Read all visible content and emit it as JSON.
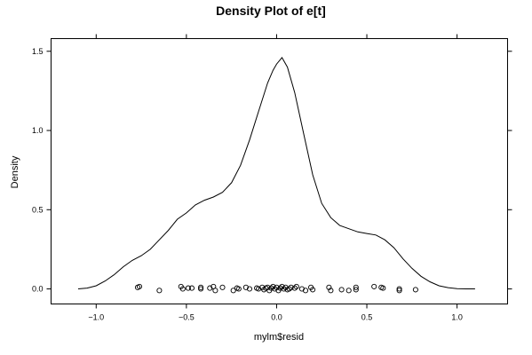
{
  "chart_data": {
    "type": "line",
    "title": "Density Plot of e[t]",
    "xlabel": "mylm$resid",
    "ylabel": "Density",
    "xlim": [
      -1.25,
      1.28
    ],
    "ylim": [
      -0.095,
      1.58
    ],
    "x_ticks": [
      -1.0,
      -0.5,
      0.0,
      0.5,
      1.0
    ],
    "x_tick_labels": [
      "−1.0",
      "−0.5",
      "0.0",
      "0.5",
      "1.0"
    ],
    "y_ticks": [
      0.0,
      0.5,
      1.0,
      1.5
    ],
    "y_tick_labels": [
      "0.0",
      "0.5",
      "1.0",
      "1.5"
    ],
    "grid": false,
    "series": [
      {
        "style": "line",
        "color": "#000000",
        "x": [
          -1.1,
          -1.05,
          -1.0,
          -0.95,
          -0.9,
          -0.85,
          -0.8,
          -0.75,
          -0.7,
          -0.65,
          -0.6,
          -0.55,
          -0.5,
          -0.45,
          -0.4,
          -0.35,
          -0.3,
          -0.25,
          -0.2,
          -0.15,
          -0.1,
          -0.05,
          -0.02,
          0.0,
          0.03,
          0.06,
          0.1,
          0.15,
          0.2,
          0.25,
          0.3,
          0.35,
          0.4,
          0.45,
          0.5,
          0.55,
          0.6,
          0.65,
          0.7,
          0.75,
          0.8,
          0.85,
          0.9,
          0.95,
          1.0,
          1.05,
          1.1
        ],
        "y": [
          0.0,
          0.005,
          0.02,
          0.05,
          0.09,
          0.14,
          0.18,
          0.21,
          0.25,
          0.31,
          0.37,
          0.44,
          0.48,
          0.53,
          0.56,
          0.58,
          0.61,
          0.67,
          0.78,
          0.94,
          1.12,
          1.3,
          1.38,
          1.42,
          1.46,
          1.4,
          1.24,
          0.98,
          0.72,
          0.54,
          0.45,
          0.4,
          0.38,
          0.36,
          0.35,
          0.34,
          0.31,
          0.26,
          0.19,
          0.13,
          0.08,
          0.045,
          0.02,
          0.008,
          0.002,
          0.0,
          0.0
        ]
      },
      {
        "style": "points",
        "color": "#000000",
        "x": [
          -0.77,
          -0.76,
          -0.65,
          -0.53,
          -0.52,
          -0.49,
          -0.47,
          -0.42,
          -0.42,
          -0.37,
          -0.35,
          -0.34,
          -0.3,
          -0.24,
          -0.22,
          -0.21,
          -0.17,
          -0.15,
          -0.11,
          -0.1,
          -0.08,
          -0.07,
          -0.06,
          -0.05,
          -0.04,
          -0.03,
          -0.02,
          -0.01,
          0.0,
          0.01,
          0.02,
          0.03,
          0.04,
          0.05,
          0.06,
          0.07,
          0.08,
          0.1,
          0.11,
          0.14,
          0.16,
          0.19,
          0.2,
          0.29,
          0.3,
          0.36,
          0.4,
          0.44,
          0.44,
          0.54,
          0.58,
          0.59,
          0.68,
          0.68,
          0.77
        ],
        "y": [
          0.01,
          0.015,
          -0.01,
          0.015,
          0.0,
          0.005,
          0.005,
          0.0,
          0.01,
          0.005,
          0.015,
          -0.01,
          0.01,
          -0.01,
          0.005,
          0.0,
          0.01,
          0.0,
          0.005,
          0.0,
          0.01,
          -0.005,
          0.005,
          0.01,
          -0.01,
          0.005,
          0.015,
          0.0,
          0.01,
          -0.01,
          0.005,
          0.015,
          0.0,
          0.01,
          -0.005,
          0.0,
          0.01,
          0.005,
          0.015,
          0.0,
          -0.01,
          0.01,
          -0.005,
          0.01,
          -0.01,
          -0.005,
          -0.01,
          0.01,
          -0.005,
          0.015,
          0.01,
          0.005,
          0.0,
          -0.01,
          -0.005
        ]
      }
    ]
  }
}
